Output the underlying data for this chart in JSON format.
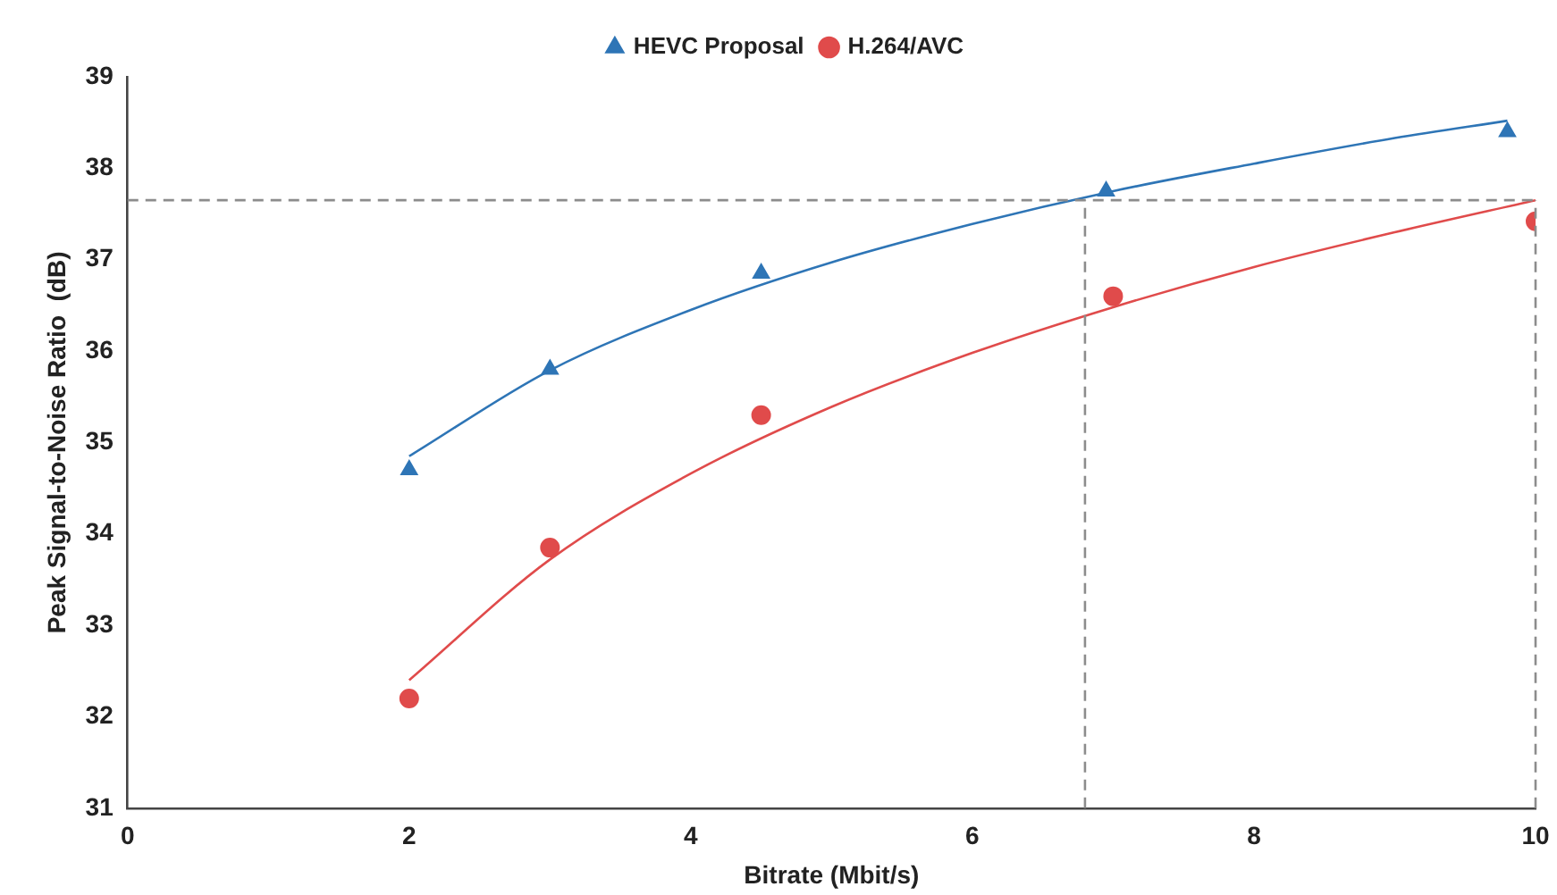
{
  "chart_data": {
    "type": "scatter",
    "xlabel": "Bitrate (Mbit/s)",
    "ylabel": "Peak Signal-to-Noise Ratio  (dB)",
    "xlim": [
      0,
      10
    ],
    "xticks": [
      0,
      2,
      4,
      6,
      8,
      10
    ],
    "ylim": [
      31,
      39
    ],
    "yticks": [
      31,
      32,
      33,
      34,
      35,
      36,
      37,
      38,
      39
    ],
    "grid": false,
    "legend": "top",
    "series": [
      {
        "name": "HEVC Proposal",
        "color": "#2e75b6",
        "marker": "triangle",
        "x": [
          2,
          3,
          4.5,
          6.95,
          9.8
        ],
        "values": [
          34.7,
          35.8,
          36.85,
          37.75,
          38.4
        ]
      },
      {
        "name": "H.264/AVC",
        "color": "#e04b4b",
        "marker": "circle",
        "x": [
          2,
          3,
          4.5,
          7,
          10
        ],
        "values": [
          32.2,
          33.85,
          35.3,
          36.6,
          37.42
        ]
      },
      {
        "type": "line",
        "color": "#2e75b6",
        "marker": "none",
        "x": [
          2,
          3,
          4,
          5,
          6,
          7,
          8,
          9,
          9.8
        ],
        "values": [
          34.85,
          35.79,
          36.45,
          36.97,
          37.39,
          37.75,
          38.05,
          38.33,
          38.52
        ]
      },
      {
        "type": "line",
        "color": "#e04b4b",
        "marker": "none",
        "x": [
          2,
          3,
          4,
          5,
          6,
          7,
          8,
          9,
          10
        ],
        "values": [
          32.4,
          33.72,
          34.66,
          35.39,
          35.98,
          36.48,
          36.92,
          37.3,
          37.65
        ]
      }
    ],
    "ref_lines": [
      {
        "axis": "y",
        "value": 37.65,
        "color": "#8c8c8c",
        "line_style": "dashed"
      },
      {
        "axis": "x",
        "value": 6.8,
        "color": "#8c8c8c",
        "line_style": "dashed"
      },
      {
        "axis": "x",
        "value": 10,
        "color": "#8c8c8c",
        "line_style": "dashed"
      }
    ]
  }
}
